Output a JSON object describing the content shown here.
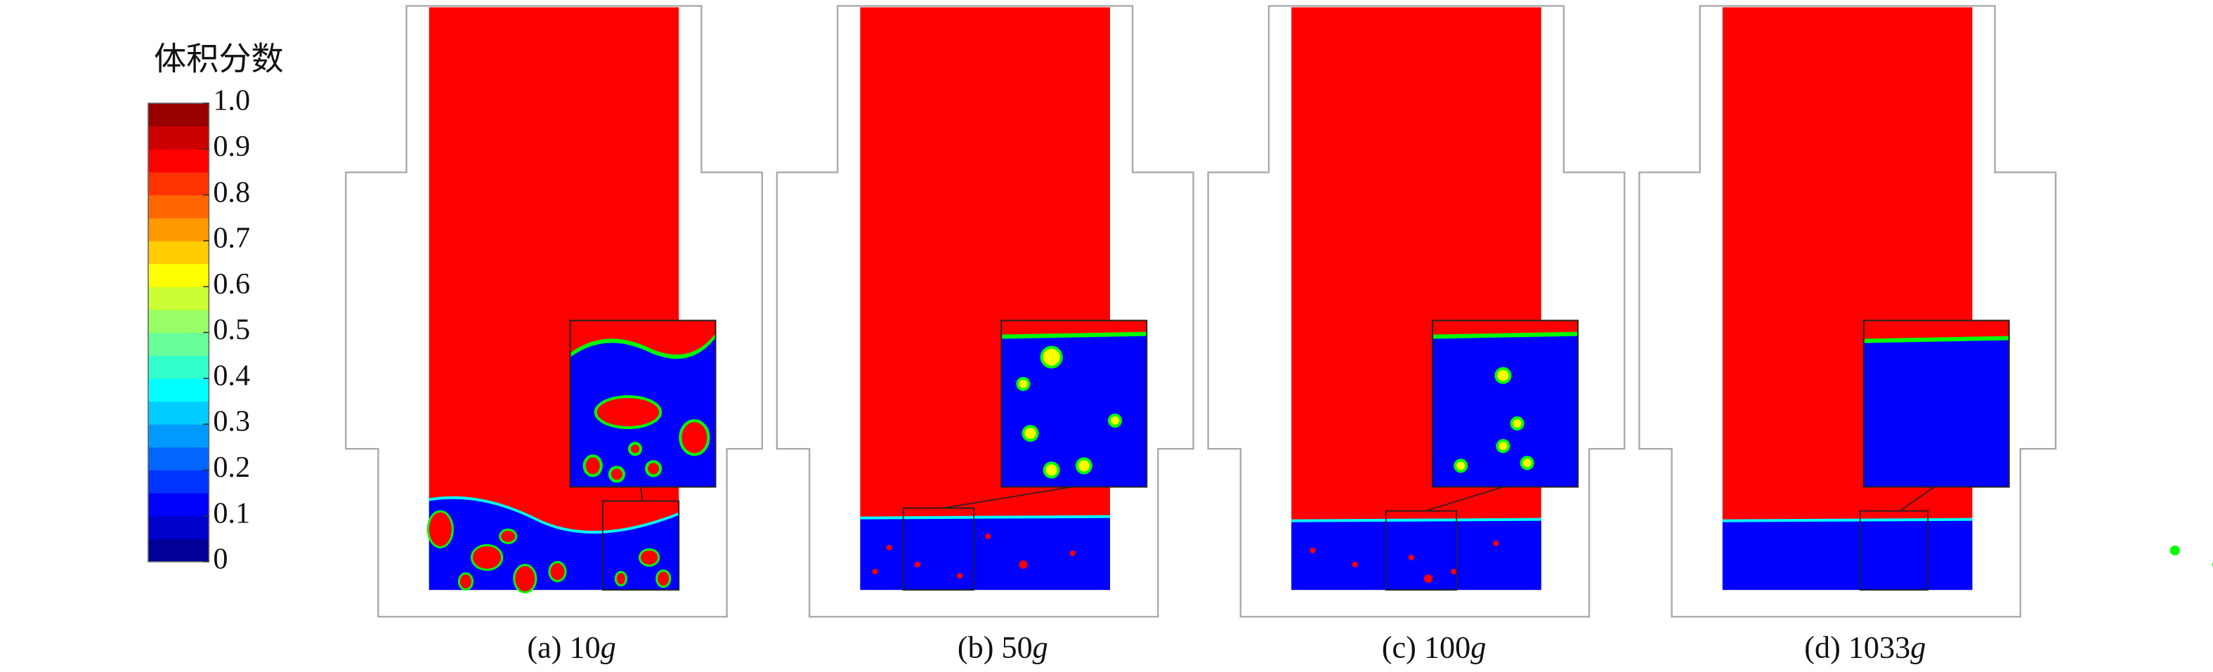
{
  "colorbar": {
    "title": "体积分数",
    "ticks": [
      {
        "value": 1,
        "label": "1.0"
      },
      0.9,
      0.8,
      0.7,
      0.6,
      0.5,
      0.4,
      0.3,
      0.2,
      0.1,
      0
    ]
  },
  "panels": [
    {
      "prefix": "(a) 10",
      "unit": "g"
    },
    {
      "prefix": "(b) 50",
      "unit": "g"
    },
    {
      "prefix": "(c) 100",
      "unit": "g"
    },
    {
      "prefix": "(d) 1033",
      "unit": "g"
    }
  ]
}
